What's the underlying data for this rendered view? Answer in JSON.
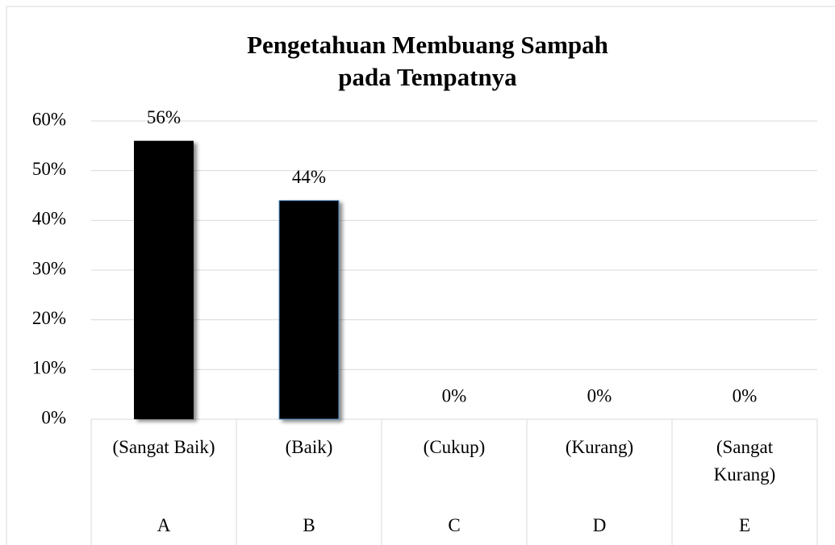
{
  "chart_data": {
    "type": "bar",
    "title": "Pengetahuan Membuang Sampah pada Tempatnya",
    "categories": [
      "(Sangat Baik)",
      "(Baik)",
      "(Cukup)",
      "(Kurang)",
      "(Sangat Kurang)"
    ],
    "category_codes": [
      "A",
      "B",
      "C",
      "D",
      "E"
    ],
    "values": [
      56,
      44,
      0,
      0,
      0
    ],
    "value_labels": [
      "56%",
      "44%",
      "0%",
      "0%",
      "0%"
    ],
    "color": "#000000",
    "ylim": [
      0,
      60
    ],
    "yticks": [
      {
        "value": 0,
        "label": "0%"
      },
      {
        "value": 10,
        "label": "10%"
      },
      {
        "value": 20,
        "label": "20%"
      },
      {
        "value": 30,
        "label": "30%"
      },
      {
        "value": 40,
        "label": "40%"
      },
      {
        "value": 50,
        "label": "50%"
      },
      {
        "value": 60,
        "label": "60%"
      }
    ],
    "grid": true
  }
}
